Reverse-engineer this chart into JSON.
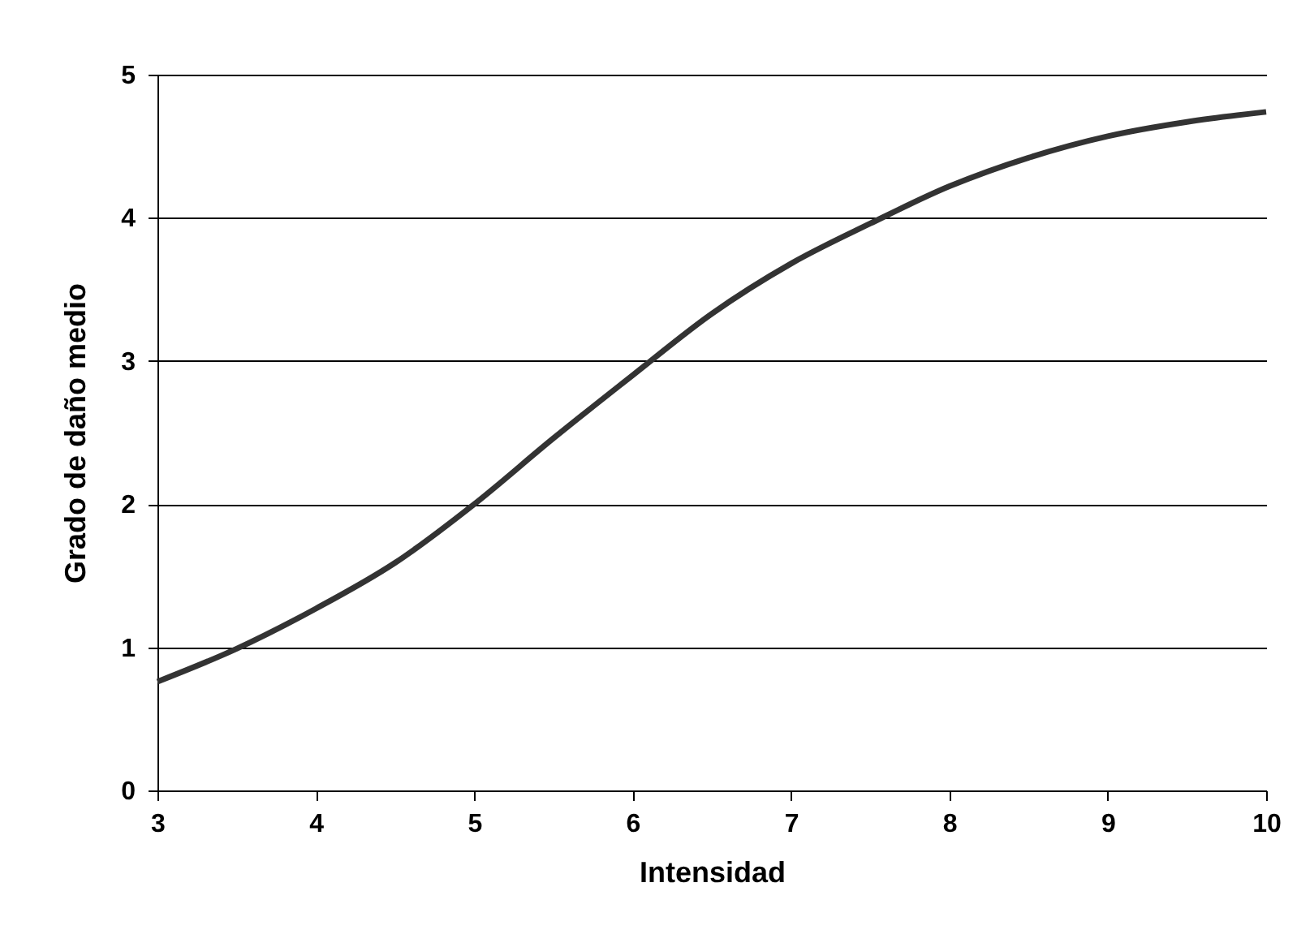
{
  "chart_data": {
    "type": "line",
    "xlabel": "Intensidad",
    "ylabel": "Grado de daño medio",
    "x": [
      3,
      3.5,
      4,
      4.5,
      5,
      5.5,
      6,
      6.5,
      7,
      7.5,
      8,
      8.5,
      9,
      9.5,
      10
    ],
    "series": [
      {
        "color": "#333333",
        "values": [
          0.76,
          0.99,
          1.27,
          1.59,
          2.0,
          2.46,
          2.9,
          3.33,
          3.68,
          3.96,
          4.22,
          4.42,
          4.57,
          4.67,
          4.74
        ]
      }
    ],
    "xlim": [
      3,
      10
    ],
    "xticks": [
      3,
      4,
      5,
      6,
      7,
      8,
      9,
      10
    ],
    "ylim": [
      0,
      5
    ],
    "yticks": [
      0,
      1,
      2,
      3,
      4,
      5
    ],
    "grid": "y",
    "legend": false,
    "marker": "none",
    "line_style": "solid"
  }
}
